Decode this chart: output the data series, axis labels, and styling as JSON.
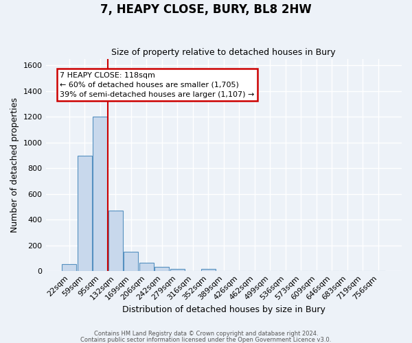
{
  "title": "7, HEAPY CLOSE, BURY, BL8 2HW",
  "subtitle": "Size of property relative to detached houses in Bury",
  "xlabel": "Distribution of detached houses by size in Bury",
  "ylabel": "Number of detached properties",
  "bin_labels": [
    "22sqm",
    "59sqm",
    "95sqm",
    "132sqm",
    "169sqm",
    "206sqm",
    "242sqm",
    "279sqm",
    "316sqm",
    "352sqm",
    "389sqm",
    "426sqm",
    "462sqm",
    "499sqm",
    "536sqm",
    "573sqm",
    "609sqm",
    "646sqm",
    "683sqm",
    "719sqm",
    "756sqm"
  ],
  "bar_values": [
    55,
    900,
    1200,
    470,
    150,
    62,
    30,
    18,
    0,
    15,
    0,
    0,
    0,
    0,
    0,
    0,
    0,
    0,
    0,
    0,
    0
  ],
  "bar_color": "#c8d8ec",
  "bar_edge_color": "#5590c0",
  "red_line_x": 2.5,
  "red_line_color": "#cc0000",
  "ylim_max": 1650,
  "yticks": [
    0,
    200,
    400,
    600,
    800,
    1000,
    1200,
    1400,
    1600
  ],
  "annotation_text": "7 HEAPY CLOSE: 118sqm\n← 60% of detached houses are smaller (1,705)\n39% of semi-detached houses are larger (1,107) →",
  "annotation_box_facecolor": "#ffffff",
  "annotation_box_edgecolor": "#cc0000",
  "footer_line1": "Contains HM Land Registry data © Crown copyright and database right 2024.",
  "footer_line2": "Contains public sector information licensed under the Open Government Licence v3.0.",
  "bg_color": "#edf2f8",
  "grid_color": "#ffffff",
  "title_fontsize": 12,
  "subtitle_fontsize": 9,
  "xlabel_fontsize": 9,
  "ylabel_fontsize": 9,
  "tick_fontsize": 8,
  "annotation_fontsize": 8,
  "footer_fontsize": 6
}
